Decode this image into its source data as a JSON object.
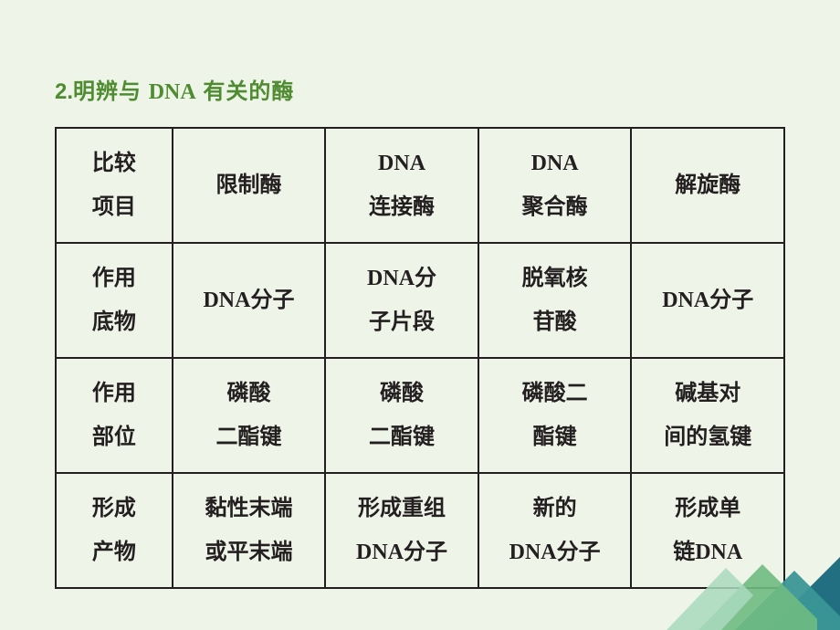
{
  "heading": {
    "number": "2.",
    "prefix": "明辨与 ",
    "dna": "DNA",
    "suffix": " 有关的酶"
  },
  "table": {
    "rows": [
      [
        "比较<br>项目",
        "限制酶",
        "<span class=\"latin\">DNA</span><br>连接酶",
        "<span class=\"latin\">DNA</span><br>聚合酶",
        "解旋酶"
      ],
      [
        "作用<br>底物",
        "<span class=\"latin\">DNA</span>分子",
        "<span class=\"latin\">DNA</span>分<br>子片段",
        "脱氧核<br>苷酸",
        "<span class=\"latin\">DNA</span>分子"
      ],
      [
        "作用<br>部位",
        "磷酸<br>二酯键",
        "磷酸<br>二酯键",
        "磷酸二<br>酯键",
        "碱基对<br>间的氢键"
      ],
      [
        "形成<br>产物",
        "黏性末端<br>或平末端",
        "形成重组<br><span class=\"latin\">DNA</span>分子",
        "新的<br><span class=\"latin\">DNA</span>分子",
        "形成单<br>链<span class=\"latin\">DNA</span>"
      ]
    ]
  },
  "colors": {
    "background": "#eef4e7",
    "heading": "#4f8c31",
    "text": "#231f20",
    "border": "#231f20",
    "deco1": "#6fbb82",
    "deco2": "#3b9696",
    "deco3": "#226f82",
    "deco4": "#a9d9bd"
  }
}
